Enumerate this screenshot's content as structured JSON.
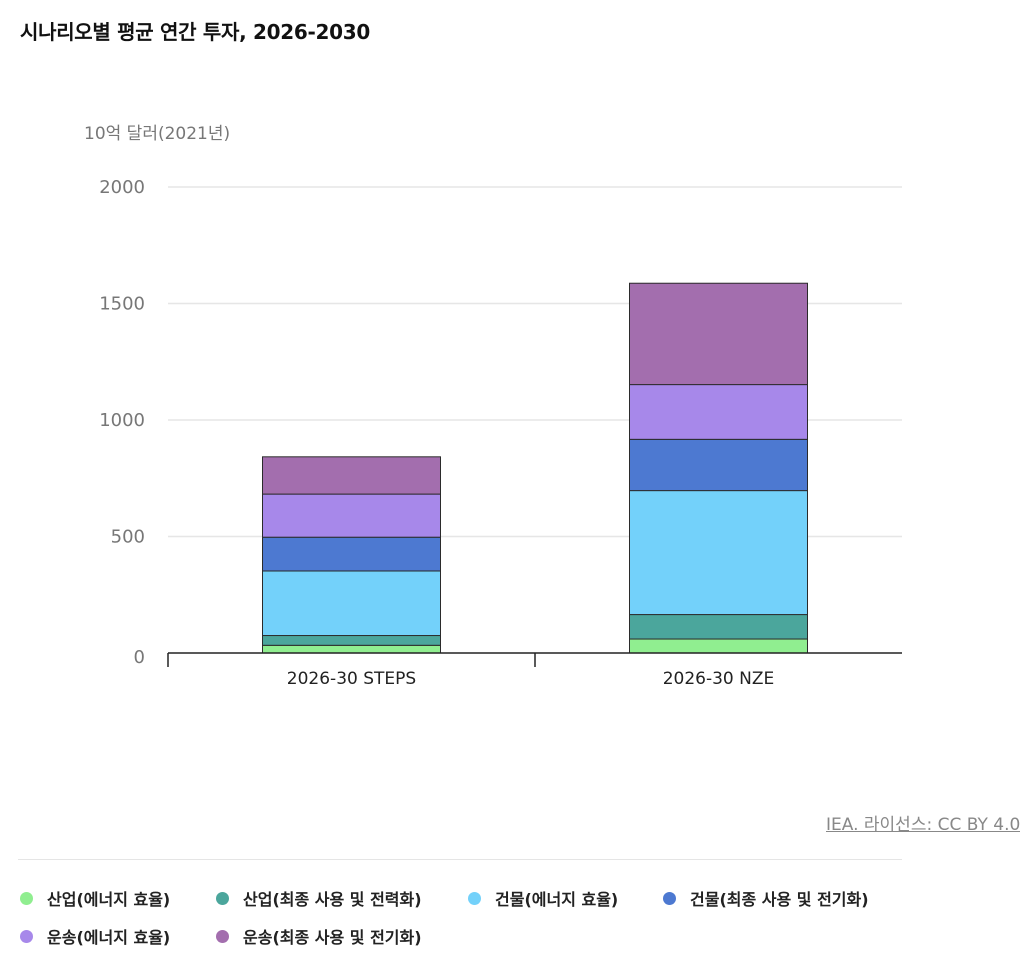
{
  "title": "시나리오별 평균 연간 투자, 2026-2030",
  "source_text": "IEA. 라이선스: CC BY 4.0",
  "chart_data": {
    "type": "bar",
    "stacked": true,
    "title": "시나리오별 평균 연간 투자, 2026-2030",
    "ylabel": "10억 달러(2021년)",
    "xlabel": "",
    "ylim": [
      0,
      2000
    ],
    "yticks": [
      0,
      500,
      1000,
      1500,
      2000
    ],
    "grid": true,
    "legend_position": "bottom",
    "categories": [
      "2026-30 STEPS",
      "2026-30 NZE"
    ],
    "series": [
      {
        "name": "산업(에너지 효율)",
        "color": "#90ee90",
        "values": [
          33,
          60
        ]
      },
      {
        "name": "산업(최종 사용 및 전력화)",
        "color": "#4ba69c",
        "values": [
          42,
          105
        ]
      },
      {
        "name": "건물(에너지 효율)",
        "color": "#73d1fa",
        "values": [
          277,
          532
        ]
      },
      {
        "name": "건물(최종 사용 및 전기화)",
        "color": "#4d79d1",
        "values": [
          145,
          220
        ]
      },
      {
        "name": "운송(에너지 효율)",
        "color": "#a788ea",
        "values": [
          185,
          235
        ]
      },
      {
        "name": "운송(최종 사용 및 전기화)",
        "color": "#a36eae",
        "values": [
          160,
          435
        ]
      }
    ]
  }
}
